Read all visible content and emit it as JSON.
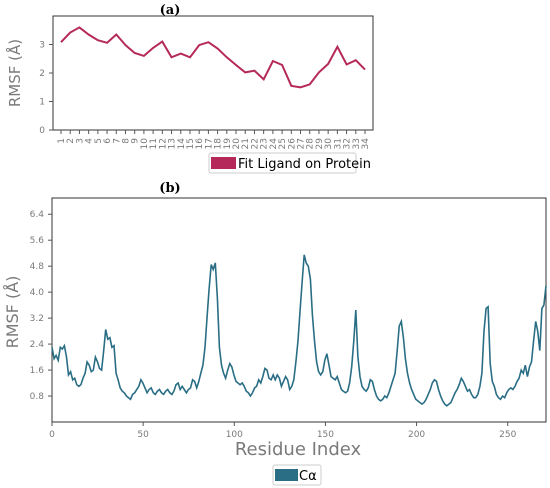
{
  "chart_data": [
    {
      "panel_label": "(a)",
      "type": "line",
      "ylabel": "RMSF (Å)",
      "xlabel": "",
      "ylim": [
        0,
        4
      ],
      "yticks": [
        "0",
        "1",
        "2",
        "3"
      ],
      "categories": [
        "1",
        "2",
        "3",
        "4",
        "5",
        "6",
        "7",
        "8",
        "9",
        "10",
        "11",
        "12",
        "13",
        "14",
        "15",
        "16",
        "17",
        "18",
        "19",
        "20",
        "21",
        "22",
        "23",
        "24",
        "25",
        "26",
        "27",
        "28",
        "29",
        "30",
        "31",
        "32",
        "33",
        "34"
      ],
      "series": [
        {
          "name": "Fit Ligand on Protein",
          "color": "#b5295a",
          "values": [
            3.08,
            3.42,
            3.6,
            3.35,
            3.15,
            3.06,
            3.35,
            2.98,
            2.7,
            2.6,
            2.88,
            3.1,
            2.55,
            2.68,
            2.55,
            2.98,
            3.08,
            2.86,
            2.55,
            2.28,
            2.02,
            2.08,
            1.78,
            2.42,
            2.28,
            1.55,
            1.5,
            1.6,
            2.02,
            2.32,
            2.92,
            2.3,
            2.45,
            2.12
          ]
        }
      ]
    },
    {
      "panel_label": "(b)",
      "type": "line",
      "ylabel": "RMSF (Å)",
      "xlabel": "Residue Index",
      "xlim": [
        0,
        271
      ],
      "ylim": [
        0,
        6.9
      ],
      "xticks": [
        "0",
        "50",
        "100",
        "150",
        "200",
        "250"
      ],
      "yticks": [
        "0.8",
        "1.6",
        "2.4",
        "3.2",
        "4.0",
        "4.8",
        "5.6",
        "6.4"
      ],
      "series": [
        {
          "name": "Cα",
          "color": "#2a6e85",
          "points": [
            [
              0,
              2.3
            ],
            [
              1,
              1.95
            ],
            [
              2,
              2.05
            ],
            [
              3,
              1.9
            ],
            [
              4,
              2.3
            ],
            [
              5,
              2.25
            ],
            [
              6,
              2.35
            ],
            [
              7,
              2.0
            ],
            [
              8,
              1.45
            ],
            [
              9,
              1.55
            ],
            [
              10,
              1.3
            ],
            [
              11,
              1.35
            ],
            [
              12,
              1.15
            ],
            [
              13,
              1.1
            ],
            [
              14,
              1.15
            ],
            [
              15,
              1.35
            ],
            [
              16,
              1.5
            ],
            [
              17,
              1.85
            ],
            [
              18,
              1.75
            ],
            [
              19,
              1.55
            ],
            [
              20,
              1.6
            ],
            [
              21,
              2.0
            ],
            [
              22,
              1.85
            ],
            [
              23,
              1.65
            ],
            [
              24,
              1.6
            ],
            [
              25,
              2.2
            ],
            [
              26,
              2.85
            ],
            [
              27,
              2.55
            ],
            [
              28,
              2.6
            ],
            [
              29,
              2.3
            ],
            [
              30,
              2.35
            ],
            [
              31,
              1.5
            ],
            [
              32,
              1.3
            ],
            [
              33,
              1.05
            ],
            [
              34,
              0.95
            ],
            [
              35,
              0.9
            ],
            [
              36,
              0.8
            ],
            [
              37,
              0.75
            ],
            [
              38,
              0.7
            ],
            [
              39,
              0.85
            ],
            [
              40,
              0.9
            ],
            [
              41,
              1.0
            ],
            [
              42,
              1.1
            ],
            [
              43,
              1.3
            ],
            [
              44,
              1.2
            ],
            [
              45,
              1.05
            ],
            [
              46,
              0.9
            ],
            [
              47,
              1.0
            ],
            [
              48,
              1.05
            ],
            [
              49,
              0.9
            ],
            [
              50,
              0.85
            ],
            [
              51,
              0.95
            ],
            [
              52,
              1.0
            ],
            [
              53,
              0.9
            ],
            [
              54,
              0.85
            ],
            [
              55,
              0.95
            ],
            [
              56,
              1.0
            ],
            [
              57,
              0.9
            ],
            [
              58,
              0.85
            ],
            [
              59,
              0.95
            ],
            [
              60,
              1.15
            ],
            [
              61,
              1.2
            ],
            [
              62,
              1.0
            ],
            [
              63,
              1.1
            ],
            [
              64,
              1.0
            ],
            [
              65,
              0.9
            ],
            [
              66,
              1.0
            ],
            [
              67,
              1.05
            ],
            [
              68,
              1.3
            ],
            [
              69,
              1.25
            ],
            [
              70,
              1.05
            ],
            [
              71,
              1.25
            ],
            [
              72,
              1.5
            ],
            [
              73,
              1.75
            ],
            [
              74,
              2.3
            ],
            [
              75,
              3.2
            ],
            [
              76,
              4.1
            ],
            [
              77,
              4.85
            ],
            [
              78,
              4.7
            ],
            [
              79,
              4.9
            ],
            [
              80,
              3.8
            ],
            [
              81,
              2.3
            ],
            [
              82,
              1.75
            ],
            [
              83,
              1.5
            ],
            [
              84,
              1.35
            ],
            [
              85,
              1.6
            ],
            [
              86,
              1.8
            ],
            [
              87,
              1.7
            ],
            [
              88,
              1.45
            ],
            [
              89,
              1.25
            ],
            [
              90,
              1.2
            ],
            [
              91,
              1.15
            ],
            [
              92,
              1.2
            ],
            [
              93,
              1.1
            ],
            [
              94,
              0.95
            ],
            [
              95,
              0.9
            ],
            [
              96,
              0.8
            ],
            [
              97,
              0.9
            ],
            [
              98,
              1.05
            ],
            [
              99,
              1.1
            ],
            [
              100,
              1.3
            ],
            [
              101,
              1.2
            ],
            [
              102,
              1.4
            ],
            [
              103,
              1.65
            ],
            [
              104,
              1.6
            ],
            [
              105,
              1.35
            ],
            [
              106,
              1.3
            ],
            [
              107,
              1.45
            ],
            [
              108,
              1.3
            ],
            [
              109,
              1.45
            ],
            [
              110,
              1.35
            ],
            [
              111,
              1.1
            ],
            [
              112,
              1.25
            ],
            [
              113,
              1.4
            ],
            [
              114,
              1.3
            ],
            [
              115,
              1.0
            ],
            [
              116,
              1.1
            ],
            [
              117,
              1.3
            ],
            [
              118,
              1.85
            ],
            [
              119,
              2.5
            ],
            [
              120,
              3.4
            ],
            [
              121,
              4.3
            ],
            [
              122,
              5.15
            ],
            [
              123,
              4.9
            ],
            [
              124,
              4.8
            ],
            [
              125,
              4.4
            ],
            [
              126,
              3.3
            ],
            [
              127,
              2.5
            ],
            [
              128,
              1.85
            ],
            [
              129,
              1.55
            ],
            [
              130,
              1.45
            ],
            [
              131,
              1.55
            ],
            [
              132,
              1.9
            ],
            [
              133,
              2.1
            ],
            [
              134,
              1.75
            ],
            [
              135,
              1.4
            ],
            [
              136,
              1.35
            ],
            [
              137,
              1.3
            ],
            [
              138,
              1.4
            ],
            [
              139,
              1.2
            ],
            [
              140,
              1.0
            ],
            [
              141,
              0.95
            ],
            [
              142,
              0.9
            ],
            [
              143,
              0.95
            ],
            [
              144,
              1.2
            ],
            [
              145,
              1.7
            ],
            [
              146,
              2.5
            ],
            [
              147,
              3.45
            ],
            [
              148,
              2.0
            ],
            [
              149,
              1.4
            ],
            [
              150,
              1.1
            ],
            [
              151,
              1.0
            ],
            [
              152,
              0.95
            ],
            [
              153,
              1.05
            ],
            [
              154,
              1.3
            ],
            [
              155,
              1.25
            ],
            [
              156,
              1.0
            ],
            [
              157,
              0.8
            ],
            [
              158,
              0.7
            ],
            [
              159,
              0.65
            ],
            [
              160,
              0.7
            ],
            [
              161,
              0.8
            ],
            [
              162,
              0.75
            ],
            [
              163,
              0.9
            ],
            [
              164,
              1.1
            ],
            [
              165,
              1.3
            ],
            [
              166,
              1.5
            ],
            [
              167,
              2.2
            ],
            [
              168,
              2.95
            ],
            [
              169,
              3.1
            ],
            [
              170,
              2.6
            ],
            [
              171,
              1.95
            ],
            [
              172,
              1.5
            ],
            [
              173,
              1.2
            ],
            [
              174,
              1.0
            ],
            [
              175,
              0.85
            ],
            [
              176,
              0.7
            ],
            [
              177,
              0.65
            ],
            [
              178,
              0.6
            ],
            [
              179,
              0.55
            ],
            [
              180,
              0.6
            ],
            [
              181,
              0.7
            ],
            [
              182,
              0.85
            ],
            [
              183,
              1.0
            ],
            [
              184,
              1.2
            ],
            [
              185,
              1.3
            ],
            [
              186,
              1.25
            ],
            [
              187,
              1.0
            ],
            [
              188,
              0.8
            ],
            [
              189,
              0.65
            ],
            [
              190,
              0.55
            ],
            [
              191,
              0.5
            ],
            [
              192,
              0.55
            ],
            [
              193,
              0.6
            ],
            [
              194,
              0.75
            ],
            [
              195,
              0.9
            ],
            [
              196,
              1.0
            ],
            [
              197,
              1.15
            ],
            [
              198,
              1.35
            ],
            [
              199,
              1.25
            ],
            [
              200,
              1.1
            ],
            [
              201,
              0.95
            ],
            [
              202,
              1.0
            ],
            [
              203,
              0.85
            ],
            [
              204,
              0.75
            ],
            [
              205,
              0.75
            ],
            [
              206,
              0.85
            ],
            [
              207,
              1.1
            ],
            [
              208,
              1.5
            ],
            [
              209,
              2.8
            ],
            [
              210,
              3.5
            ],
            [
              211,
              3.55
            ],
            [
              212,
              1.8
            ],
            [
              213,
              1.25
            ],
            [
              214,
              1.1
            ],
            [
              215,
              0.85
            ],
            [
              216,
              0.75
            ],
            [
              217,
              0.7
            ],
            [
              218,
              0.8
            ],
            [
              219,
              0.75
            ],
            [
              220,
              0.9
            ],
            [
              221,
              1.0
            ],
            [
              222,
              1.05
            ],
            [
              223,
              1.0
            ],
            [
              224,
              1.1
            ],
            [
              225,
              1.25
            ],
            [
              226,
              1.35
            ],
            [
              227,
              1.6
            ],
            [
              228,
              1.5
            ],
            [
              229,
              1.75
            ],
            [
              230,
              1.4
            ],
            [
              231,
              1.7
            ],
            [
              232,
              1.85
            ],
            [
              233,
              2.5
            ],
            [
              234,
              3.1
            ],
            [
              235,
              2.8
            ],
            [
              236,
              2.2
            ],
            [
              237,
              3.5
            ],
            [
              238,
              3.6
            ],
            [
              239,
              4.2
            ]
          ]
        }
      ]
    }
  ]
}
